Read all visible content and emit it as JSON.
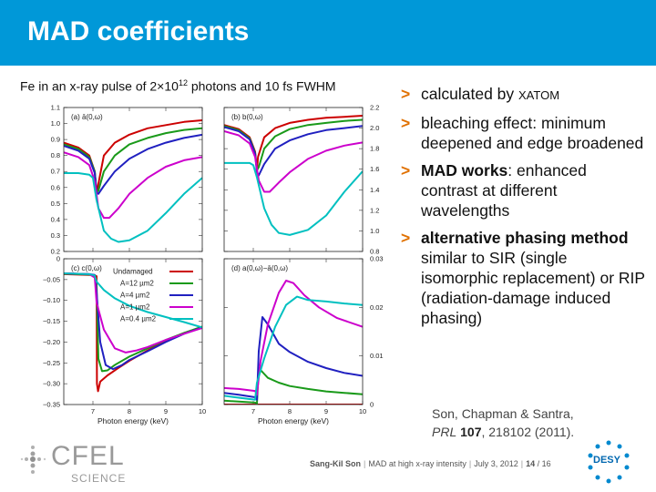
{
  "slide": {
    "title": "MAD coefficients",
    "subtitle_pre": "Fe in an x-ray pulse of 2×10",
    "subtitle_exp": "12",
    "subtitle_post": " photons and 10 fs FWHM"
  },
  "bullets": [
    {
      "arrow": ">",
      "pre": "calculated by ",
      "strong": "",
      "post": "",
      "xatom": "XATOM"
    },
    {
      "arrow": ">",
      "pre": "bleaching effect: minimum deepened and edge broadened",
      "strong": "",
      "post": "",
      "xatom": ""
    },
    {
      "arrow": ">",
      "pre": "",
      "strong": "MAD works",
      "post": ": enhanced contrast at different wavelengths",
      "xatom": ""
    },
    {
      "arrow": ">",
      "pre": "",
      "strong": "alternative phasing method",
      "post": " similar to SIR (single isomorphic replacement) or RIP (radiation-damage induced phasing)",
      "xatom": ""
    }
  ],
  "citation": {
    "authors": "Son, Chapman & Santra,",
    "journal": "PRL",
    "volume": "107",
    "rest": ", 218102 (2011)."
  },
  "footer": {
    "author": "Sang-Kil Son",
    "talk": "MAD at high x-ray intensity",
    "date": "July 3, 2012",
    "page": "14",
    "total": "/ 16"
  },
  "logos": {
    "cfel": "CFEL",
    "science": "SCIENCE",
    "desy": "DESY"
  },
  "colors": {
    "title_bar": "#0098d8",
    "bullet_arrow": "#e07000",
    "Undamaged": "#cc0000",
    "A=12 µm2": "#1a9a1a",
    "A=4 µm2": "#2020c0",
    "A=1 µm2": "#cc00cc",
    "A=0.4 µm2": "#00c0c0"
  },
  "chart_data": [
    {
      "type": "line",
      "panel": "(a) ā(0,ω)",
      "xlabel": "",
      "ylabel": "",
      "xlim": [
        6.2,
        10
      ],
      "ylim": [
        0.2,
        1.1
      ],
      "yticks": [
        "0.2",
        "0.3",
        "0.4",
        "0.5",
        "0.6",
        "0.7",
        "0.8",
        "0.9",
        "1.0",
        "1.1"
      ],
      "series": [
        {
          "name": "Undamaged",
          "x": [
            6.2,
            6.6,
            6.9,
            7.05,
            7.1,
            7.13,
            7.3,
            7.6,
            8.0,
            8.5,
            9.0,
            9.5,
            10.0
          ],
          "y": [
            0.88,
            0.85,
            0.8,
            0.7,
            0.57,
            0.6,
            0.8,
            0.88,
            0.93,
            0.97,
            0.99,
            1.01,
            1.02
          ]
        },
        {
          "name": "A=12 µm2",
          "x": [
            6.2,
            6.6,
            6.9,
            7.05,
            7.1,
            7.15,
            7.3,
            7.6,
            8.0,
            8.5,
            9.0,
            9.5,
            10.0
          ],
          "y": [
            0.87,
            0.84,
            0.79,
            0.7,
            0.57,
            0.58,
            0.7,
            0.8,
            0.87,
            0.91,
            0.94,
            0.96,
            0.97
          ]
        },
        {
          "name": "A=4 µm2",
          "x": [
            6.2,
            6.6,
            6.9,
            7.05,
            7.1,
            7.15,
            7.3,
            7.6,
            8.0,
            8.5,
            9.0,
            9.5,
            10.0
          ],
          "y": [
            0.86,
            0.83,
            0.78,
            0.69,
            0.57,
            0.56,
            0.61,
            0.7,
            0.78,
            0.84,
            0.88,
            0.91,
            0.93
          ]
        },
        {
          "name": "A=1 µm2",
          "x": [
            6.2,
            6.6,
            6.9,
            7.05,
            7.15,
            7.3,
            7.45,
            7.7,
            8.0,
            8.5,
            9.0,
            9.5,
            10.0
          ],
          "y": [
            0.82,
            0.79,
            0.74,
            0.64,
            0.47,
            0.41,
            0.41,
            0.47,
            0.56,
            0.66,
            0.73,
            0.77,
            0.79
          ]
        },
        {
          "name": "A=0.4 µm2",
          "x": [
            6.2,
            6.6,
            6.9,
            7.0,
            7.1,
            7.3,
            7.5,
            7.7,
            8.0,
            8.5,
            9.0,
            9.5,
            10.0
          ],
          "y": [
            0.69,
            0.69,
            0.68,
            0.66,
            0.52,
            0.33,
            0.28,
            0.26,
            0.27,
            0.33,
            0.44,
            0.56,
            0.66
          ]
        }
      ]
    },
    {
      "type": "line",
      "panel": "(b) b(0,ω)",
      "xlabel": "",
      "ylabel": "",
      "xlim": [
        6.2,
        10
      ],
      "ylim": [
        0.8,
        2.2
      ],
      "yticks": [
        "0.8",
        "1.0",
        "1.2",
        "1.4",
        "1.6",
        "1.8",
        "2.0",
        "2.2"
      ],
      "series": [
        {
          "name": "Undamaged",
          "x": [
            6.2,
            6.6,
            6.9,
            7.05,
            7.1,
            7.13,
            7.3,
            7.6,
            8.0,
            8.5,
            9.0,
            9.5,
            10.0
          ],
          "y": [
            2.03,
            1.99,
            1.91,
            1.77,
            1.59,
            1.72,
            1.91,
            2.0,
            2.05,
            2.08,
            2.1,
            2.11,
            2.12
          ]
        },
        {
          "name": "A=12 µm2",
          "x": [
            6.2,
            6.6,
            6.9,
            7.05,
            7.1,
            7.15,
            7.3,
            7.6,
            8.0,
            8.5,
            9.0,
            9.5,
            10.0
          ],
          "y": [
            2.02,
            1.98,
            1.9,
            1.76,
            1.59,
            1.62,
            1.8,
            1.92,
            1.99,
            2.03,
            2.05,
            2.07,
            2.08
          ]
        },
        {
          "name": "A=4 µm2",
          "x": [
            6.2,
            6.6,
            6.9,
            7.05,
            7.1,
            7.15,
            7.3,
            7.6,
            8.0,
            8.5,
            9.0,
            9.5,
            10.0
          ],
          "y": [
            2.01,
            1.97,
            1.89,
            1.75,
            1.57,
            1.54,
            1.65,
            1.8,
            1.88,
            1.94,
            1.98,
            2.0,
            2.02
          ]
        },
        {
          "name": "A=1 µm2",
          "x": [
            6.2,
            6.6,
            6.9,
            7.05,
            7.15,
            7.3,
            7.45,
            7.7,
            8.0,
            8.5,
            9.0,
            9.5,
            10.0
          ],
          "y": [
            1.97,
            1.93,
            1.85,
            1.72,
            1.49,
            1.38,
            1.38,
            1.47,
            1.57,
            1.7,
            1.78,
            1.83,
            1.86
          ]
        },
        {
          "name": "A=0.4 µm2",
          "x": [
            6.2,
            6.6,
            6.9,
            7.0,
            7.1,
            7.3,
            7.5,
            7.7,
            8.0,
            8.5,
            9.0,
            9.5,
            10.0
          ],
          "y": [
            1.66,
            1.66,
            1.66,
            1.64,
            1.52,
            1.22,
            1.06,
            0.98,
            0.96,
            1.01,
            1.15,
            1.38,
            1.58
          ]
        }
      ]
    },
    {
      "type": "line",
      "panel": "(c) c(0,ω)",
      "xlabel": "Photon energy (keV)",
      "ylabel": "",
      "xlim": [
        6.2,
        10
      ],
      "ylim": [
        -0.35,
        0
      ],
      "xticks": [
        "7",
        "8",
        "9",
        "10"
      ],
      "yticks": [
        "0",
        "−0.05",
        "−0.10",
        "−0.15",
        "−0.20",
        "−0.25",
        "−0.30",
        "−0.35"
      ],
      "legend": "top-right",
      "series": [
        {
          "name": "Undamaged",
          "x": [
            6.2,
            6.6,
            6.9,
            7.05,
            7.1,
            7.11,
            7.14,
            7.2,
            7.4,
            7.7,
            8.0,
            8.5,
            9.0,
            9.5,
            10.0
          ],
          "y": [
            -0.037,
            -0.038,
            -0.039,
            -0.04,
            -0.042,
            -0.3,
            -0.318,
            -0.295,
            -0.28,
            -0.262,
            -0.245,
            -0.22,
            -0.197,
            -0.178,
            -0.164
          ]
        },
        {
          "name": "A=12 µm2",
          "x": [
            6.2,
            6.6,
            6.9,
            7.05,
            7.1,
            7.15,
            7.25,
            7.4,
            7.6,
            8.0,
            8.5,
            9.0,
            9.5,
            10.0
          ],
          "y": [
            -0.036,
            -0.037,
            -0.038,
            -0.04,
            -0.065,
            -0.24,
            -0.27,
            -0.268,
            -0.255,
            -0.235,
            -0.215,
            -0.195,
            -0.178,
            -0.163
          ]
        },
        {
          "name": "A=4 µm2",
          "x": [
            6.2,
            6.6,
            6.9,
            7.05,
            7.1,
            7.2,
            7.35,
            7.55,
            7.8,
            8.0,
            8.5,
            9.0,
            9.5,
            10.0
          ],
          "y": [
            -0.035,
            -0.036,
            -0.037,
            -0.039,
            -0.08,
            -0.2,
            -0.255,
            -0.265,
            -0.255,
            -0.243,
            -0.222,
            -0.2,
            -0.18,
            -0.165
          ]
        },
        {
          "name": "A=1 µm2",
          "x": [
            6.2,
            6.6,
            6.9,
            7.05,
            7.1,
            7.3,
            7.6,
            7.9,
            8.2,
            8.5,
            9.0,
            9.5,
            10.0
          ],
          "y": [
            -0.035,
            -0.036,
            -0.037,
            -0.045,
            -0.105,
            -0.17,
            -0.215,
            -0.225,
            -0.22,
            -0.212,
            -0.195,
            -0.18,
            -0.166
          ]
        },
        {
          "name": "A=0.4 µm2",
          "x": [
            6.2,
            6.6,
            6.9,
            7.05,
            7.1,
            7.3,
            7.6,
            8.0,
            8.5,
            9.0,
            9.5,
            10.0
          ],
          "y": [
            -0.035,
            -0.036,
            -0.037,
            -0.04,
            -0.055,
            -0.075,
            -0.095,
            -0.113,
            -0.128,
            -0.14,
            -0.152,
            -0.165
          ]
        }
      ]
    },
    {
      "type": "line",
      "panel": "(d) a(0,ω)−ā(0,ω)",
      "xlabel": "Photon energy (keV)",
      "ylabel": "",
      "xlim": [
        6.2,
        10
      ],
      "ylim": [
        0,
        0.03
      ],
      "xticks": [
        "7",
        "8",
        "9",
        "10"
      ],
      "yticks": [
        "0",
        "0.01",
        "0.02",
        "0.03"
      ],
      "series": [
        {
          "name": "Undamaged",
          "x": [
            6.2,
            7.1,
            7.1,
            10.0
          ],
          "y": [
            0.0,
            0.0,
            0.0,
            0.0
          ]
        },
        {
          "name": "A=12 µm2",
          "x": [
            6.2,
            6.6,
            7.05,
            7.1,
            7.15,
            7.4,
            7.7,
            8.0,
            8.5,
            9.0,
            9.5,
            10.0
          ],
          "y": [
            0.0008,
            0.0006,
            0.0004,
            0.0002,
            0.0075,
            0.0055,
            0.0045,
            0.0038,
            0.0032,
            0.0027,
            0.0024,
            0.0021
          ]
        },
        {
          "name": "A=4 µm2",
          "x": [
            6.2,
            6.6,
            7.05,
            7.1,
            7.15,
            7.25,
            7.4,
            7.7,
            8.0,
            8.5,
            9.0,
            9.5,
            10.0
          ],
          "y": [
            0.0024,
            0.002,
            0.0015,
            0.001,
            0.011,
            0.018,
            0.0165,
            0.0125,
            0.0108,
            0.0088,
            0.0075,
            0.0065,
            0.0059
          ]
        },
        {
          "name": "A=1 µm2",
          "x": [
            6.2,
            6.6,
            7.05,
            7.1,
            7.2,
            7.4,
            7.7,
            7.9,
            8.1,
            8.4,
            8.8,
            9.3,
            10.0
          ],
          "y": [
            0.0034,
            0.0032,
            0.0028,
            0.002,
            0.009,
            0.0165,
            0.023,
            0.0255,
            0.025,
            0.0225,
            0.02,
            0.0178,
            0.016
          ]
        },
        {
          "name": "A=0.4 µm2",
          "x": [
            6.2,
            6.6,
            7.05,
            7.1,
            7.3,
            7.6,
            7.9,
            8.2,
            8.5,
            9.0,
            9.5,
            10.0
          ],
          "y": [
            0.0018,
            0.0014,
            0.001,
            0.0045,
            0.0095,
            0.016,
            0.0205,
            0.0222,
            0.0215,
            0.0212,
            0.0208,
            0.0205
          ]
        }
      ]
    }
  ]
}
